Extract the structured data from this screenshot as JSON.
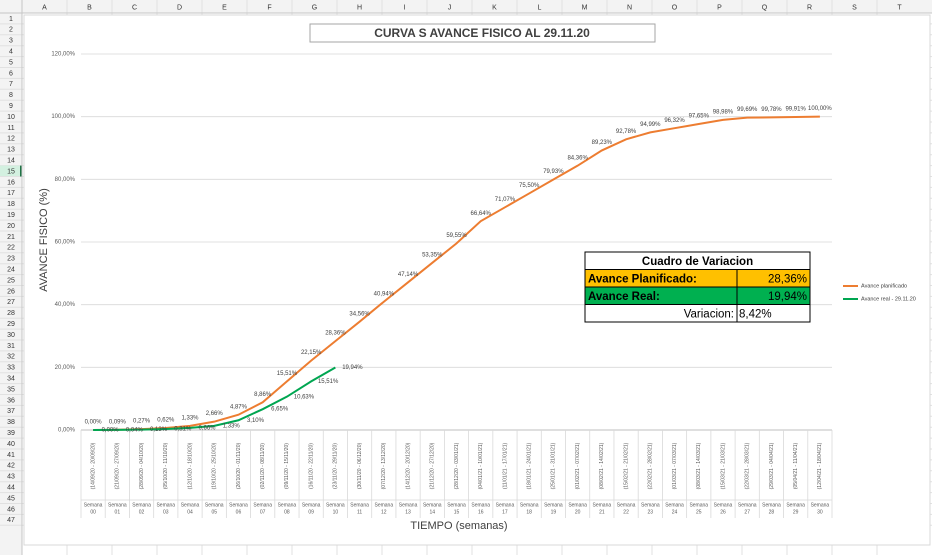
{
  "sheet": {
    "columns": [
      "A",
      "B",
      "C",
      "D",
      "E",
      "F",
      "G",
      "H",
      "I",
      "J",
      "K",
      "L",
      "M",
      "N",
      "O",
      "P",
      "Q",
      "R",
      "S",
      "T"
    ],
    "rows": [
      1,
      2,
      3,
      4,
      5,
      6,
      7,
      8,
      9,
      10,
      11,
      12,
      13,
      14,
      15,
      16,
      17,
      18,
      19,
      20,
      21,
      22,
      23,
      24,
      25,
      26,
      27,
      28,
      29,
      30,
      31,
      32,
      33,
      34,
      35,
      36,
      37,
      38,
      39,
      40,
      41,
      42,
      43,
      44,
      45,
      46,
      47
    ],
    "selected_row": 15
  },
  "chart_data": {
    "type": "line",
    "title": "CURVA S AVANCE FISICO AL 29.11.20",
    "y_label": "AVANCE FISICO (%)",
    "x_label": "TIEMPO (semanas)",
    "week_label": "Semana",
    "categories": [
      "00",
      "01",
      "02",
      "03",
      "04",
      "05",
      "06",
      "07",
      "08",
      "09",
      "10",
      "11",
      "12",
      "13",
      "14",
      "15",
      "16",
      "17",
      "18",
      "19",
      "20",
      "21",
      "22",
      "23",
      "24",
      "25",
      "26",
      "27",
      "28",
      "29",
      "30"
    ],
    "date_ranges": [
      "(14/09/20 - 20/09/20)",
      "(21/09/20 - 27/09/20)",
      "(28/09/20 - 04/10/20)",
      "(05/10/20 - 11/10/20)",
      "(12/10/20 - 18/10/20)",
      "(19/10/20 - 25/10/20)",
      "(26/10/20 - 01/11/20)",
      "(02/11/20 - 08/11/20)",
      "(09/11/20 - 15/11/20)",
      "(16/11/20 - 22/11/20)",
      "(23/11/20 - 29/11/20)",
      "(30/11/20 - 06/12/20)",
      "(07/12/20 - 13/12/20)",
      "(14/12/20 - 20/12/20)",
      "(21/12/20 - 27/12/20)",
      "(28/12/20 - 03/01/21)",
      "(04/01/21 - 10/01/21)",
      "(11/01/21 - 17/01/21)",
      "(18/01/21 - 24/01/21)",
      "(25/01/21 - 31/01/21)",
      "(01/02/21 - 07/02/21)",
      "(08/02/21 - 14/02/21)",
      "(15/02/21 - 21/02/21)",
      "(22/02/21 - 28/02/21)",
      "(01/03/21 - 07/03/21)",
      "(08/03/21 - 14/03/21)",
      "(15/03/21 - 21/03/21)",
      "(22/03/21 - 28/03/21)",
      "(29/03/21 - 04/04/21)",
      "(05/04/21 - 11/04/21)",
      "(12/04/21 - 18/04/21)"
    ],
    "ylim": [
      0,
      120
    ],
    "yticks": [
      {
        "value": 0,
        "label": "0,00%"
      },
      {
        "value": 20,
        "label": "20,00%"
      },
      {
        "value": 40,
        "label": "40,00%"
      },
      {
        "value": 60,
        "label": "60,00%"
      },
      {
        "value": 80,
        "label": "80,00%"
      },
      {
        "value": 100,
        "label": "100,00%"
      },
      {
        "value": 120,
        "label": "120,00%"
      }
    ],
    "grid": true,
    "legend": "right",
    "series": [
      {
        "name": "Avance planificado",
        "color": "#ed7d31",
        "values": [
          0.0,
          0.09,
          0.27,
          0.62,
          1.33,
          2.66,
          4.87,
          8.86,
          15.51,
          22.15,
          28.36,
          34.56,
          40.94,
          47.14,
          53.35,
          59.55,
          66.64,
          71.07,
          75.5,
          79.93,
          84.36,
          89.23,
          92.78,
          94.99,
          96.32,
          97.65,
          98.98,
          99.69,
          99.78,
          99.91,
          100.0
        ],
        "value_labels": [
          "0,00%",
          "0,09%",
          "0,27%",
          "0,62%",
          "1,33%",
          "2,66%",
          "4,87%",
          "8,86%",
          "15,51%",
          "22,15%",
          "28,36%",
          "34,56%",
          "40,94%",
          "47,14%",
          "53,35%",
          "59,55%",
          "66,64%",
          "71,07%",
          "75,50%",
          "79,93%",
          "84,36%",
          "89,23%",
          "92,78%",
          "94,99%",
          "96,32%",
          "97,65%",
          "98,98%",
          "99,69%",
          "99,78%",
          "99,91%",
          "100,00%"
        ]
      },
      {
        "name": "Avance real - 29.11.20",
        "color": "#00a651",
        "values": [
          0.0,
          0.04,
          0.13,
          0.31,
          0.66,
          1.33,
          3.1,
          6.65,
          10.63,
          15.51,
          19.94,
          null,
          null,
          null,
          null,
          null,
          null,
          null,
          null,
          null,
          null,
          null,
          null,
          null,
          null,
          null,
          null,
          null,
          null,
          null,
          null
        ],
        "value_labels": [
          "0,00%",
          "0,04%",
          "0,13%",
          "0,31%",
          "0,66%",
          "1,33%",
          "3,10%",
          "6,65%",
          "10,63%",
          "15,51%",
          "19,94%",
          null,
          null,
          null,
          null,
          null,
          null,
          null,
          null,
          null,
          null,
          null,
          null,
          null,
          null,
          null,
          null,
          null,
          null,
          null,
          null
        ]
      }
    ]
  },
  "variation_table": {
    "title": "Cuadro de Variacion",
    "rows": [
      [
        "Avance Planificado:",
        "28,36%"
      ],
      [
        "Avance Real:",
        "19,94%"
      ],
      [
        "Variacion:",
        "8,42%"
      ]
    ]
  }
}
